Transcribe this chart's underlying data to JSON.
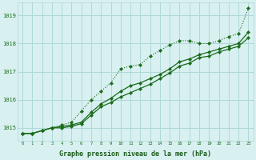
{
  "x": [
    0,
    1,
    2,
    3,
    4,
    5,
    6,
    7,
    8,
    9,
    10,
    11,
    12,
    13,
    14,
    15,
    16,
    17,
    18,
    19,
    20,
    21,
    22,
    23
  ],
  "line_top": [
    1014.8,
    1014.8,
    1014.9,
    1015.0,
    1015.1,
    1015.2,
    1015.6,
    1016.0,
    1016.3,
    1016.6,
    1017.1,
    1017.2,
    1017.25,
    1017.55,
    1017.75,
    1017.95,
    1018.1,
    1018.1,
    1018.0,
    1018.0,
    1018.1,
    1018.25,
    1018.35,
    1019.25
  ],
  "line_mid": [
    1014.8,
    1014.8,
    1014.9,
    1015.0,
    1015.05,
    1015.1,
    1015.2,
    1015.55,
    1015.85,
    1016.05,
    1016.3,
    1016.5,
    1016.6,
    1016.75,
    1016.9,
    1017.1,
    1017.35,
    1017.45,
    1017.6,
    1017.7,
    1017.8,
    1017.9,
    1018.0,
    1018.4
  ],
  "line_bot": [
    1014.8,
    1014.8,
    1014.9,
    1015.0,
    1015.0,
    1015.05,
    1015.15,
    1015.45,
    1015.75,
    1015.9,
    1016.1,
    1016.25,
    1016.4,
    1016.55,
    1016.75,
    1016.95,
    1017.2,
    1017.3,
    1017.5,
    1017.55,
    1017.7,
    1017.8,
    1017.9,
    1018.2
  ],
  "bg_color": "#d8f0f0",
  "grid_color": "#b0d8d8",
  "line_color": "#1a6b1a",
  "xlabel": "Graphe pression niveau de la mer (hPa)",
  "ylabel_ticks": [
    1015,
    1016,
    1017,
    1018,
    1019
  ],
  "ylim": [
    1014.55,
    1019.45
  ],
  "xlim": [
    -0.5,
    23.5
  ],
  "axis_label_color": "#1a5c1a"
}
